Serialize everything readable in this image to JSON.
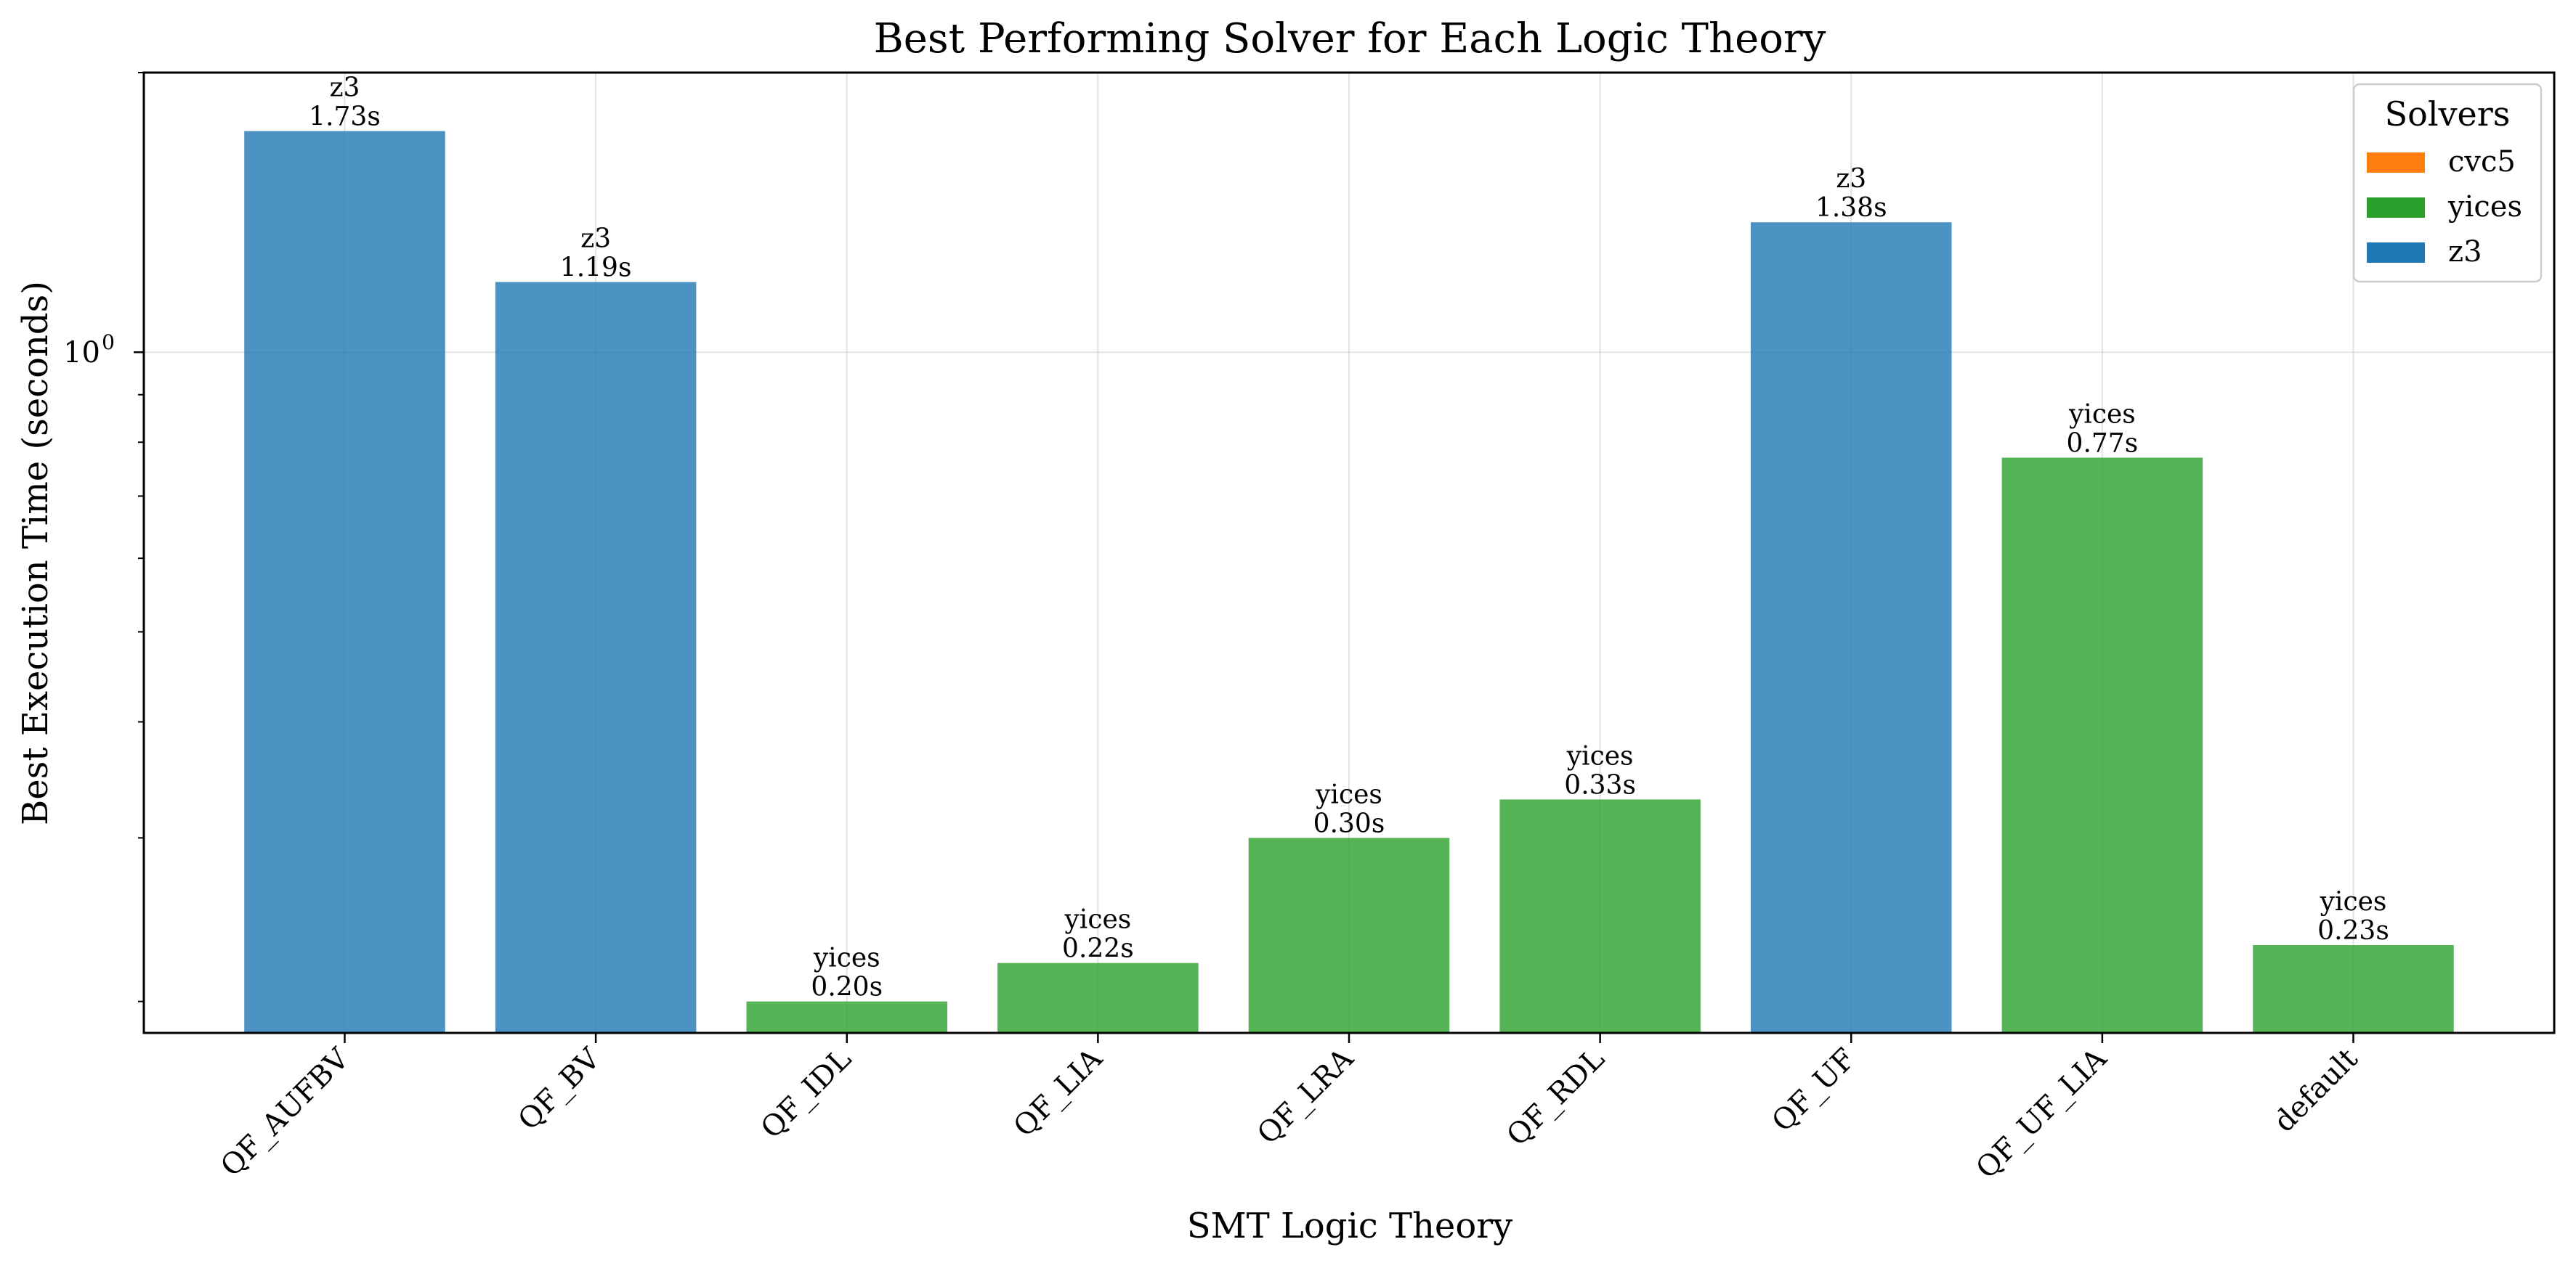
{
  "chart_data": {
    "type": "bar",
    "title": "Best Performing Solver for Each Logic Theory",
    "xlabel": "SMT Logic Theory",
    "ylabel": "Best Execution Time (seconds)",
    "yscale": "log",
    "ylim": [
      0.185,
      2.0
    ],
    "yticks": [
      {
        "value": 1.0,
        "label": "10^0"
      }
    ],
    "grid": true,
    "categories": [
      "QF_AUFBV",
      "QF_BV",
      "QF_IDL",
      "QF_LIA",
      "QF_LRA",
      "QF_RDL",
      "QF_UF",
      "QF_UF_LIA",
      "default"
    ],
    "values": [
      1.73,
      1.19,
      0.2,
      0.22,
      0.3,
      0.33,
      1.38,
      0.77,
      0.23
    ],
    "bar_solver": [
      "z3",
      "z3",
      "yices",
      "yices",
      "yices",
      "yices",
      "z3",
      "yices",
      "yices"
    ],
    "bar_value_labels": [
      "1.73s",
      "1.19s",
      "0.20s",
      "0.22s",
      "0.30s",
      "0.33s",
      "1.38s",
      "0.77s",
      "0.23s"
    ],
    "legend": {
      "title": "Solvers",
      "placement": "top-right",
      "entries": [
        {
          "name": "cvc5",
          "color": "#ff7f0e"
        },
        {
          "name": "yices",
          "color": "#2ca02c"
        },
        {
          "name": "z3",
          "color": "#1f77b4"
        }
      ]
    },
    "colors": {
      "z3": "#1f77b4",
      "yices": "#2ca02c",
      "cvc5": "#ff7f0e"
    }
  }
}
